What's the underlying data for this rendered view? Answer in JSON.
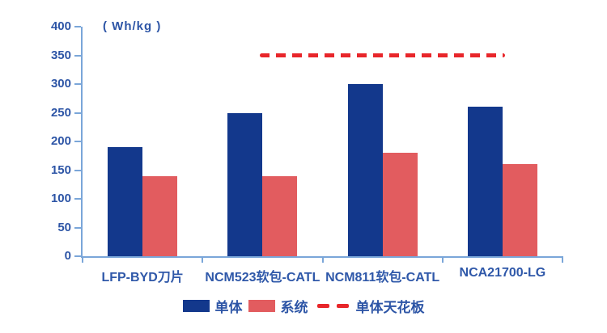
{
  "chart_data": {
    "type": "bar",
    "title": "",
    "unit_label": "( Wh/kg )",
    "xlabel": "",
    "ylabel": "Wh/kg",
    "ylim": [
      0,
      400
    ],
    "ytick_step": 50,
    "grid": false,
    "legend_position": "bottom",
    "categories": [
      "LFP-BYD刀片",
      "NCM523软包-CATL",
      "NCM811软包-CATL",
      "NCA21700-LG"
    ],
    "series": [
      {
        "key": "cell",
        "name": "单体",
        "color": "#13388c",
        "values": [
          190,
          250,
          300,
          260
        ]
      },
      {
        "key": "system",
        "name": "系统",
        "color": "#e25c5f",
        "values": [
          140,
          140,
          180,
          160
        ]
      }
    ],
    "reference_line": {
      "label": "单体天花板",
      "value": 350,
      "color": "#e8262a",
      "style": "dashed",
      "span_fraction": [
        0.37,
        0.88
      ]
    }
  },
  "colors": {
    "axis": "#7aa6d9",
    "text": "#2d55a6",
    "background": "#ffffff"
  }
}
